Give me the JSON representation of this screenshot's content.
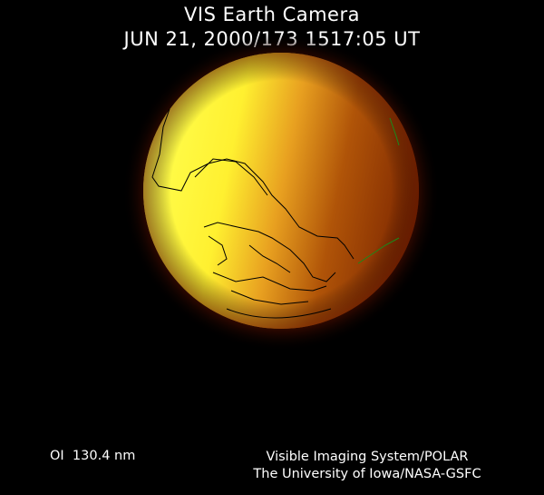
{
  "header": {
    "title": "VIS Earth Camera",
    "timestamp": "JUN 21, 2000/173 1517:05 UT"
  },
  "footer": {
    "band": "OI  130.4 nm",
    "instrument_line1": "Visible Imaging System/POLAR",
    "instrument_line2": "The University of Iowa/NASA-GSFC"
  },
  "image": {
    "colors": {
      "bright": "#ffff40",
      "mid": "#f0a020",
      "dark": "#8a2c00",
      "coastline": "#000000",
      "grid": "#1a8a1a"
    }
  }
}
